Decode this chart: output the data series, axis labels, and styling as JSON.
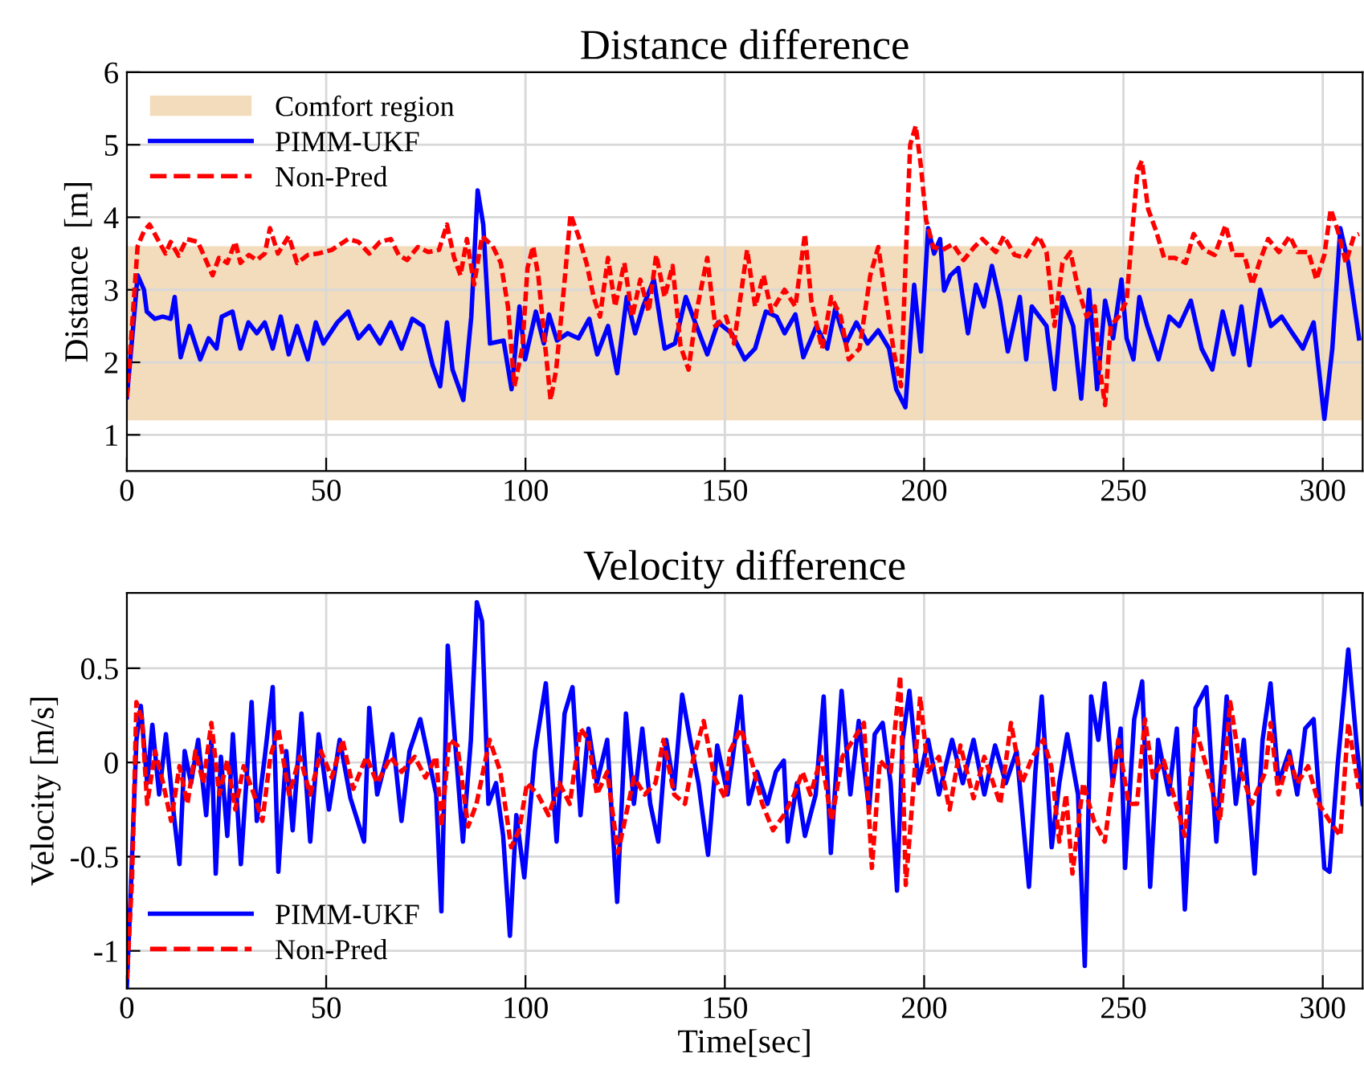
{
  "chart_data": [
    {
      "type": "line",
      "title": "Distance difference",
      "ylabel": "Distance  [m]",
      "xlim": [
        0,
        310
      ],
      "xticks": [
        0,
        50,
        100,
        150,
        200,
        250,
        300
      ],
      "ylim": [
        0.5,
        6
      ],
      "yticks": [
        1,
        2,
        3,
        4,
        5,
        6
      ],
      "grid": true,
      "legend": "top left",
      "bands": [
        {
          "axis": "y",
          "from": 1.2,
          "to": 3.6,
          "label": "Comfort region",
          "color": "#f2dcbb"
        }
      ],
      "series": [
        {
          "name": "PIMM-UKF",
          "color": "#0000ff",
          "line_style": "solid",
          "x": [
            0,
            1.6,
            2.7,
            4.3,
            5,
            7,
            9,
            11,
            12,
            13.5,
            15.7,
            18.4,
            20.5,
            22.5,
            23.8,
            26.5,
            28.5,
            30.5,
            32.6,
            34.6,
            36.6,
            38.6,
            40.6,
            42.7,
            45.4,
            47.4,
            49.3,
            52.8,
            55.5,
            58.1,
            60.8,
            63.5,
            66.2,
            68.9,
            71.6,
            74.3,
            76.7,
            78.6,
            80.3,
            81.7,
            84.4,
            86.4,
            88,
            89.4,
            91.1,
            94.5,
            96.5,
            98.5,
            99.9,
            102.6,
            104.6,
            105.9,
            107.9,
            110.6,
            113.3,
            116,
            118,
            120.7,
            123,
            125.4,
            127.5,
            129.5,
            132.2,
            134.9,
            137.5,
            140.2,
            142.9,
            145.6,
            148.3,
            151.7,
            155,
            157.6,
            160.3,
            163,
            165,
            167.7,
            169.7,
            173,
            175.7,
            177.7,
            180.4,
            183,
            185.8,
            188.5,
            191.2,
            193,
            195.3,
            197.5,
            199.2,
            201,
            202.5,
            204,
            205,
            206.6,
            208.6,
            211,
            213,
            215,
            217,
            219,
            221,
            224,
            225.6,
            227,
            230.7,
            232.7,
            234.7,
            237.4,
            239.4,
            241.4,
            243.4,
            245.4,
            247.4,
            249.5,
            250.8,
            252.5,
            254,
            256,
            258.8,
            261.5,
            264,
            266.9,
            269.6,
            272.3,
            274.9,
            277.6,
            279.6,
            281.6,
            284.3,
            287,
            289.7,
            292.4,
            295,
            297.7,
            300.4,
            302.4,
            304.4,
            306.4,
            309.1
          ],
          "values": [
            1.52,
            2.5,
            3.2,
            3.0,
            2.7,
            2.6,
            2.63,
            2.6,
            2.9,
            2.07,
            2.5,
            2.04,
            2.33,
            2.19,
            2.63,
            2.7,
            2.19,
            2.55,
            2.4,
            2.55,
            2.19,
            2.63,
            2.11,
            2.5,
            2.04,
            2.55,
            2.26,
            2.55,
            2.7,
            2.33,
            2.5,
            2.26,
            2.55,
            2.19,
            2.6,
            2.5,
            1.96,
            1.67,
            2.55,
            1.9,
            1.48,
            2.63,
            4.37,
            3.9,
            2.26,
            2.3,
            1.63,
            2.77,
            2.04,
            2.7,
            2.26,
            2.66,
            2.3,
            2.4,
            2.33,
            2.6,
            2.11,
            2.5,
            1.85,
            2.9,
            2.4,
            2.77,
            3.14,
            2.19,
            2.26,
            2.9,
            2.5,
            2.11,
            2.55,
            2.4,
            2.04,
            2.19,
            2.7,
            2.63,
            2.4,
            2.66,
            2.07,
            2.5,
            2.19,
            2.74,
            2.26,
            2.55,
            2.26,
            2.44,
            2.19,
            1.63,
            1.38,
            3.07,
            2.15,
            3.85,
            3.5,
            3.7,
            2.99,
            3.2,
            3.3,
            2.4,
            3.07,
            2.77,
            3.33,
            2.85,
            2.15,
            2.9,
            2.04,
            2.77,
            2.5,
            1.63,
            2.9,
            2.5,
            1.5,
            3.0,
            1.63,
            2.85,
            2.33,
            3.14,
            2.33,
            2.04,
            2.9,
            2.5,
            2.04,
            2.63,
            2.5,
            2.85,
            2.19,
            1.9,
            2.7,
            2.11,
            2.77,
            1.96,
            3.0,
            2.5,
            2.63,
            2.4,
            2.19,
            2.55,
            1.22,
            2.19,
            3.85,
            3.37,
            2.33
          ]
        },
        {
          "name": "Non-Pred",
          "color": "#ff0000",
          "line_style": "dashed",
          "x": [
            0,
            0.9,
            2.7,
            4.3,
            5.7,
            7.7,
            9.7,
            11,
            13,
            15,
            17.8,
            19.1,
            21.5,
            23.1,
            25.2,
            27.2,
            28.5,
            30.6,
            32.6,
            34.6,
            35.9,
            37.9,
            40.6,
            42.7,
            45.4,
            48,
            51.4,
            55.5,
            58.1,
            60.8,
            63.5,
            66.2,
            68.2,
            70.3,
            73,
            75.6,
            78.3,
            80.3,
            82.1,
            83.7,
            85.3,
            87.1,
            89.1,
            91.8,
            93.8,
            95.6,
            97.2,
            99.2,
            100.5,
            101.9,
            103.2,
            105,
            106.3,
            107.7,
            109.6,
            111.3,
            113.3,
            115.3,
            117.1,
            118.7,
            120.7,
            122.5,
            124.8,
            126.8,
            128.8,
            130.9,
            132.8,
            134.9,
            136.9,
            138.9,
            140.9,
            142.9,
            145.6,
            147.6,
            150.3,
            152.3,
            155.6,
            157.6,
            159.7,
            161.7,
            165,
            167.7,
            170.1,
            171.7,
            174.4,
            176.7,
            179.1,
            181.1,
            183.8,
            186.5,
            188.5,
            190.5,
            192.5,
            194.2,
            195.6,
            196.5,
            197.9,
            199.2,
            200.5,
            202.3,
            204.6,
            207.2,
            209.9,
            212.6,
            214.6,
            218,
            220,
            222.7,
            225.3,
            228.7,
            230.7,
            232.7,
            234.7,
            236.7,
            238.7,
            240.8,
            242.8,
            244.1,
            245.4,
            246.8,
            248.8,
            250.8,
            252.1,
            253.5,
            254.6,
            256.2,
            258.2,
            260.2,
            262.9,
            265.6,
            267.6,
            270.2,
            272.9,
            275.6,
            277.6,
            280.3,
            282.3,
            284.3,
            286.3,
            289,
            291.7,
            293.7,
            296.4,
            298.4,
            300.4,
            302,
            303.8,
            305.8,
            307.8,
            309.1
          ],
          "values": [
            1.52,
            2.19,
            3.6,
            3.81,
            3.9,
            3.7,
            3.5,
            3.66,
            3.47,
            3.7,
            3.66,
            3.5,
            3.2,
            3.44,
            3.37,
            3.66,
            3.37,
            3.48,
            3.41,
            3.5,
            3.85,
            3.5,
            3.74,
            3.37,
            3.48,
            3.5,
            3.55,
            3.7,
            3.66,
            3.5,
            3.66,
            3.7,
            3.48,
            3.41,
            3.59,
            3.52,
            3.55,
            3.9,
            3.44,
            3.2,
            3.7,
            3.07,
            3.74,
            3.6,
            3.37,
            2.77,
            1.67,
            2.19,
            3.3,
            3.6,
            3.2,
            2.19,
            1.48,
            1.9,
            3.0,
            4.04,
            3.74,
            3.37,
            2.9,
            2.63,
            3.44,
            2.77,
            3.37,
            2.63,
            3.14,
            2.7,
            3.48,
            2.9,
            3.33,
            2.22,
            1.9,
            2.7,
            3.44,
            2.5,
            2.63,
            2.26,
            3.55,
            2.77,
            3.2,
            2.7,
            3.0,
            2.77,
            3.77,
            2.85,
            2.19,
            2.9,
            2.63,
            2.04,
            2.19,
            3.2,
            3.59,
            2.85,
            2.11,
            1.67,
            3.74,
            5.0,
            5.26,
            4.7,
            3.96,
            3.59,
            3.55,
            3.63,
            3.41,
            3.59,
            3.7,
            3.52,
            3.74,
            3.48,
            3.44,
            3.74,
            3.52,
            2.5,
            3.37,
            3.52,
            3.0,
            2.63,
            2.77,
            1.9,
            1.41,
            2.5,
            2.63,
            2.85,
            3.74,
            4.63,
            4.78,
            4.11,
            3.81,
            3.44,
            3.44,
            3.37,
            3.77,
            3.55,
            3.48,
            3.89,
            3.48,
            3.48,
            3.07,
            3.41,
            3.7,
            3.52,
            3.74,
            3.52,
            3.52,
            3.14,
            3.48,
            4.11,
            3.81,
            3.37,
            3.74,
            3.77
          ]
        }
      ]
    },
    {
      "type": "line",
      "title": "Velocity difference",
      "xlabel": "Time[sec]",
      "ylabel": "Velocity [m/s]",
      "xlim": [
        0,
        310
      ],
      "xticks": [
        0,
        50,
        100,
        150,
        200,
        250,
        300
      ],
      "ylim": [
        -1.2,
        0.9
      ],
      "yticks": [
        -1,
        -0.5,
        0,
        0.5
      ],
      "grid": true,
      "legend": "bottom left",
      "series": [
        {
          "name": "PIMM-UKF",
          "color": "#0000ff",
          "line_style": "solid",
          "x": [
            0,
            1.1,
            2.4,
            3.5,
            5.1,
            6.4,
            8.1,
            9.8,
            11.8,
            13.2,
            14.5,
            16.1,
            17.9,
            19.9,
            21.2,
            22.3,
            23.6,
            25.2,
            26.6,
            28.6,
            31.3,
            32.6,
            34.6,
            36.6,
            38,
            40,
            41.6,
            43.8,
            46,
            48.1,
            50.7,
            53.4,
            56.1,
            59.5,
            60.8,
            62.8,
            66.6,
            68.9,
            70.9,
            73.6,
            75.6,
            77.6,
            78.9,
            80.5,
            82.3,
            84.3,
            86.3,
            87.8,
            89.1,
            90.7,
            92.6,
            94.4,
            96.1,
            97.7,
            99.7,
            102.4,
            105.1,
            107.8,
            109.8,
            111.8,
            113.8,
            115.8,
            117.9,
            120.5,
            123,
            125.2,
            127.2,
            129.3,
            131.3,
            133.3,
            135.3,
            137.3,
            139.3,
            141.3,
            143.4,
            145.8,
            148.1,
            150.7,
            152,
            154,
            156,
            158.1,
            160.7,
            162.8,
            164.8,
            165.8,
            168.1,
            170.1,
            172.8,
            174.8,
            176.6,
            179.3,
            181.5,
            183.6,
            186.2,
            187.6,
            189.6,
            191.6,
            193.2,
            194.6,
            196.3,
            198.6,
            201,
            203.7,
            207,
            209.7,
            212.4,
            215.1,
            217.8,
            220.5,
            223.2,
            226.3,
            227.9,
            229.5,
            232,
            233.9,
            235.9,
            238.6,
            240.3,
            241.9,
            243.7,
            245.3,
            247.3,
            249.3,
            250.4,
            252.7,
            254.7,
            256.7,
            258.7,
            261.4,
            263.4,
            265.4,
            268.1,
            270.8,
            273.3,
            275.9,
            278.2,
            280.2,
            282.9,
            284.9,
            286.9,
            288.9,
            291.6,
            293.6,
            295.6,
            297.7,
            300.4,
            301.7,
            303.7,
            306.4,
            308.4,
            310
          ],
          "values": [
            -1.19,
            -0.62,
            0.12,
            0.3,
            -0.11,
            0.2,
            -0.17,
            0.15,
            -0.28,
            -0.54,
            0.06,
            -0.11,
            0.12,
            -0.28,
            0.12,
            -0.59,
            0.03,
            -0.39,
            0.15,
            -0.54,
            0.32,
            -0.31,
            0.03,
            0.4,
            -0.58,
            0.06,
            -0.36,
            0.26,
            -0.42,
            0.15,
            -0.25,
            0.12,
            -0.19,
            -0.42,
            0.29,
            -0.17,
            0.15,
            -0.31,
            0.06,
            0.23,
            0.03,
            -0.17,
            -0.79,
            0.62,
            0.12,
            -0.42,
            0.12,
            0.85,
            0.75,
            -0.22,
            -0.11,
            -0.39,
            -0.92,
            -0.28,
            -0.61,
            0.06,
            0.42,
            -0.42,
            0.26,
            0.4,
            -0.28,
            0.18,
            -0.11,
            0.12,
            -0.74,
            0.26,
            -0.22,
            0.18,
            -0.22,
            -0.42,
            0.12,
            -0.14,
            0.36,
            0.12,
            -0.11,
            -0.49,
            0.09,
            -0.17,
            0.03,
            0.35,
            -0.22,
            -0.05,
            -0.22,
            -0.05,
            0.01,
            -0.42,
            -0.11,
            -0.39,
            -0.17,
            0.35,
            -0.48,
            0.38,
            -0.17,
            0.22,
            -0.25,
            0.15,
            0.21,
            -0.11,
            -0.68,
            0.12,
            0.38,
            -0.11,
            0.12,
            -0.17,
            0.12,
            -0.11,
            0.12,
            -0.17,
            0.09,
            -0.11,
            0.06,
            -0.66,
            -0.05,
            0.35,
            -0.45,
            -0.11,
            0.15,
            -0.17,
            -1.08,
            0.35,
            0.12,
            0.42,
            -0.11,
            0.18,
            -0.56,
            0.23,
            0.43,
            -0.66,
            0.12,
            -0.17,
            0.18,
            -0.78,
            0.29,
            0.4,
            -0.42,
            0.35,
            -0.22,
            0.12,
            -0.59,
            0.12,
            0.42,
            -0.11,
            0.06,
            -0.17,
            0.18,
            0.23,
            -0.56,
            -0.58,
            -0.02,
            0.6,
            0.12,
            -0.22
          ]
        },
        {
          "name": "Non-Pred",
          "color": "#ff0000",
          "line_style": "dashed",
          "x": [
            0,
            1.3,
            2.4,
            3.8,
            5.1,
            7.1,
            9.1,
            11.1,
            13.2,
            15.2,
            17.2,
            19.2,
            21.2,
            23.2,
            25.2,
            27.2,
            29.3,
            31.9,
            34,
            36,
            38,
            40.7,
            43.4,
            46,
            48.7,
            51.4,
            54.1,
            56.8,
            60.1,
            62.8,
            66.2,
            68.9,
            72.2,
            74.9,
            77.6,
            78.9,
            80.9,
            82.9,
            85.6,
            87.7,
            91,
            93.7,
            96.4,
            98.4,
            100.4,
            103.1,
            105.8,
            108.5,
            111.1,
            113.8,
            115.8,
            117.9,
            120.5,
            123.2,
            125.2,
            127.2,
            129.9,
            132.6,
            134.6,
            137.3,
            140,
            142,
            144.7,
            147.4,
            150.1,
            151.3,
            154,
            156.7,
            159.4,
            162.1,
            164.8,
            167.4,
            169.5,
            171.5,
            174.2,
            176.8,
            179.5,
            182.2,
            184.9,
            186.9,
            188.9,
            191.6,
            194,
            195.4,
            197,
            199,
            201,
            203.7,
            206.4,
            209.1,
            212.4,
            215.1,
            219.1,
            221.8,
            224.5,
            227.2,
            229.9,
            231.9,
            233.9,
            235.6,
            237.2,
            239.9,
            242.6,
            245.3,
            248.7,
            251.3,
            253.4,
            255.4,
            257.4,
            260.1,
            262.8,
            265.4,
            268.1,
            270.8,
            274.2,
            276.8,
            279.5,
            282.2,
            285.6,
            286.9,
            288.9,
            291.6,
            293.6,
            296.3,
            299,
            301.7,
            304.4,
            306.4,
            309
          ],
          "values": [
            -1.15,
            -0.62,
            0.32,
            0.23,
            -0.22,
            0.06,
            -0.11,
            -0.31,
            -0.02,
            -0.22,
            0.06,
            -0.11,
            0.21,
            -0.17,
            0.01,
            -0.25,
            -0.02,
            -0.17,
            -0.31,
            0.03,
            0.18,
            -0.17,
            0.03,
            -0.17,
            0.06,
            -0.08,
            0.12,
            -0.14,
            0.03,
            -0.11,
            0.03,
            -0.05,
            0.03,
            -0.08,
            0.03,
            -0.34,
            0.12,
            0.09,
            -0.34,
            -0.22,
            0.12,
            -0.05,
            -0.45,
            -0.36,
            -0.11,
            -0.17,
            -0.28,
            -0.11,
            -0.22,
            0.18,
            0.12,
            -0.17,
            -0.05,
            -0.48,
            -0.28,
            -0.08,
            -0.17,
            -0.11,
            0.12,
            -0.17,
            -0.22,
            0.01,
            0.22,
            -0.08,
            -0.19,
            0.06,
            0.18,
            0.01,
            -0.22,
            -0.36,
            -0.28,
            -0.17,
            -0.05,
            -0.17,
            0.03,
            -0.31,
            0.03,
            0.12,
            0.21,
            -0.56,
            0.01,
            -0.05,
            0.46,
            -0.65,
            -0.22,
            0.35,
            -0.05,
            0.03,
            -0.25,
            0.09,
            -0.19,
            0.03,
            -0.22,
            0.21,
            -0.11,
            0.03,
            0.12,
            -0.02,
            -0.42,
            -0.17,
            -0.59,
            -0.11,
            -0.31,
            -0.42,
            0.12,
            -0.22,
            -0.22,
            0.23,
            -0.08,
            0.01,
            -0.19,
            -0.39,
            0.18,
            -0.02,
            -0.31,
            0.32,
            -0.05,
            -0.22,
            -0.05,
            0.21,
            -0.17,
            0.03,
            -0.11,
            -0.02,
            -0.22,
            -0.31,
            -0.39,
            0.21,
            -0.14
          ]
        }
      ]
    }
  ]
}
